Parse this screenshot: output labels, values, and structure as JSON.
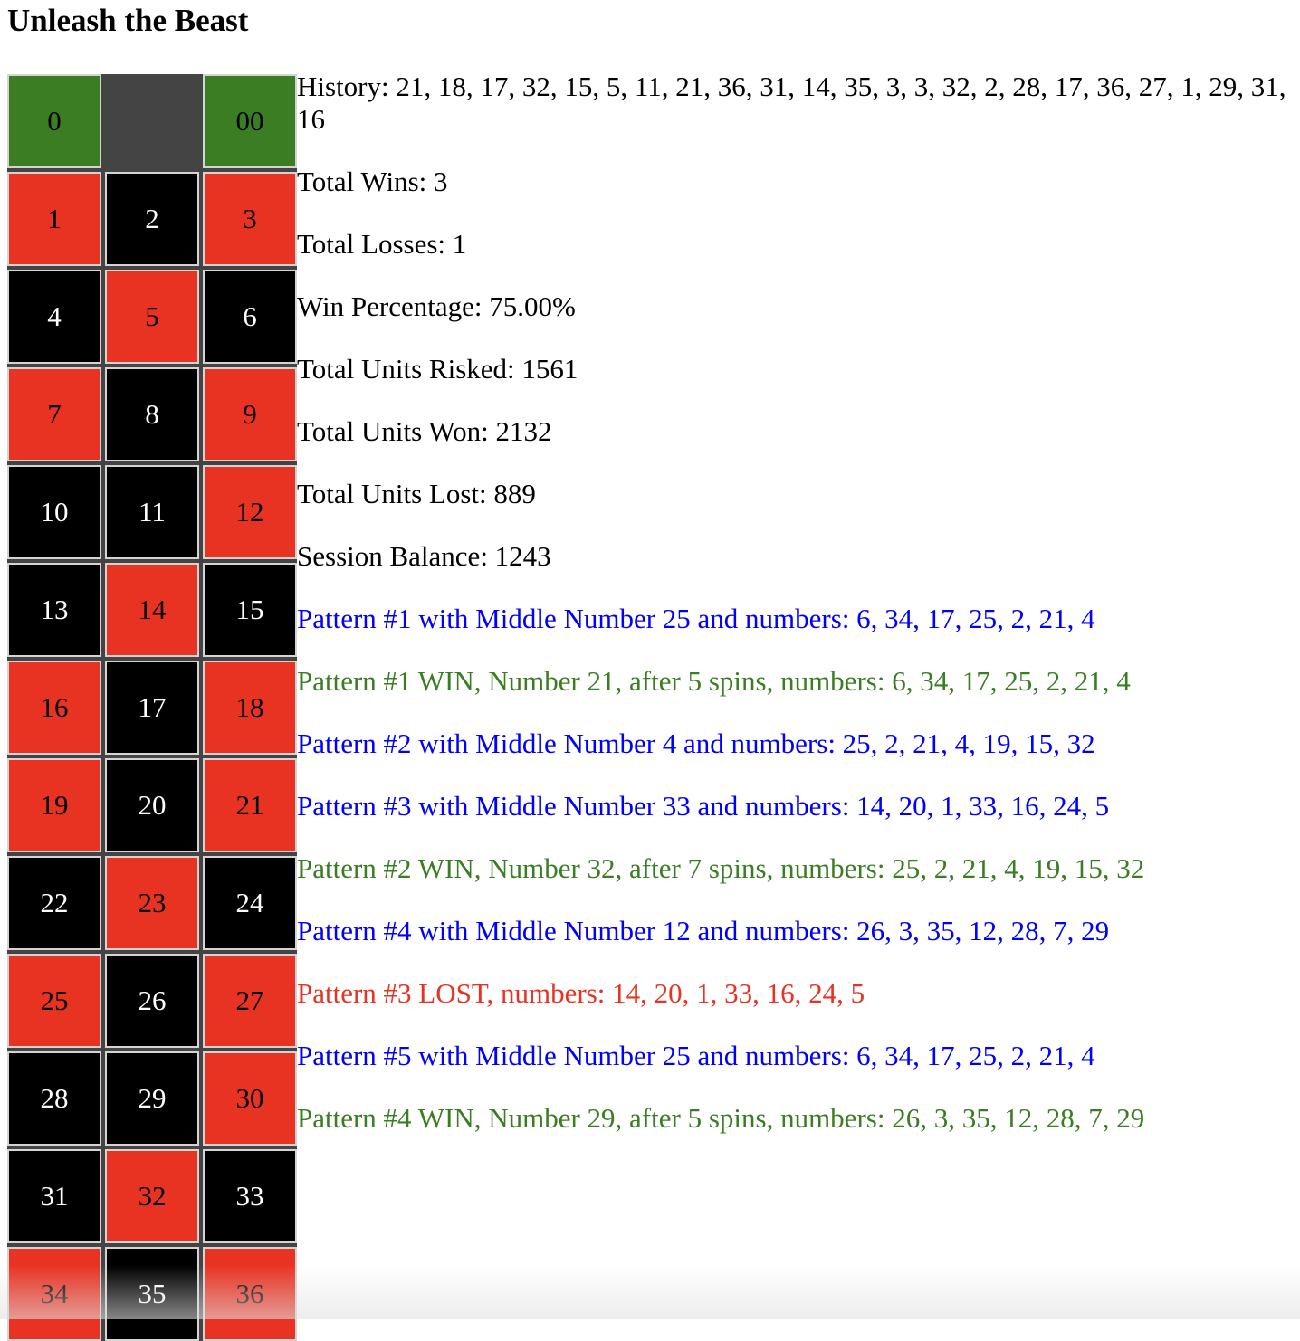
{
  "title": "Unleash the Beast",
  "colors": {
    "red": "#e83323",
    "black": "#000000",
    "green": "#3a7d23",
    "blue": "#0000ff"
  },
  "board": [
    [
      {
        "n": "0",
        "c": "green"
      },
      {
        "n": "",
        "c": "empty"
      },
      {
        "n": "00",
        "c": "green"
      }
    ],
    [
      {
        "n": "1",
        "c": "red"
      },
      {
        "n": "2",
        "c": "black"
      },
      {
        "n": "3",
        "c": "red"
      }
    ],
    [
      {
        "n": "4",
        "c": "black"
      },
      {
        "n": "5",
        "c": "red"
      },
      {
        "n": "6",
        "c": "black"
      }
    ],
    [
      {
        "n": "7",
        "c": "red"
      },
      {
        "n": "8",
        "c": "black"
      },
      {
        "n": "9",
        "c": "red"
      }
    ],
    [
      {
        "n": "10",
        "c": "black"
      },
      {
        "n": "11",
        "c": "black"
      },
      {
        "n": "12",
        "c": "red"
      }
    ],
    [
      {
        "n": "13",
        "c": "black"
      },
      {
        "n": "14",
        "c": "red"
      },
      {
        "n": "15",
        "c": "black"
      }
    ],
    [
      {
        "n": "16",
        "c": "red"
      },
      {
        "n": "17",
        "c": "black"
      },
      {
        "n": "18",
        "c": "red"
      }
    ],
    [
      {
        "n": "19",
        "c": "red"
      },
      {
        "n": "20",
        "c": "black"
      },
      {
        "n": "21",
        "c": "red"
      }
    ],
    [
      {
        "n": "22",
        "c": "black"
      },
      {
        "n": "23",
        "c": "red"
      },
      {
        "n": "24",
        "c": "black"
      }
    ],
    [
      {
        "n": "25",
        "c": "red"
      },
      {
        "n": "26",
        "c": "black"
      },
      {
        "n": "27",
        "c": "red"
      }
    ],
    [
      {
        "n": "28",
        "c": "black"
      },
      {
        "n": "29",
        "c": "black"
      },
      {
        "n": "30",
        "c": "red"
      }
    ],
    [
      {
        "n": "31",
        "c": "black"
      },
      {
        "n": "32",
        "c": "red"
      },
      {
        "n": "33",
        "c": "black"
      }
    ],
    [
      {
        "n": "34",
        "c": "red"
      },
      {
        "n": "35",
        "c": "black"
      },
      {
        "n": "36",
        "c": "red"
      }
    ]
  ],
  "stats": {
    "history": "History: 21, 18, 17, 32, 15, 5, 11, 21, 36, 31, 14, 35, 3, 3, 32, 2, 28, 17, 36, 27, 1, 29, 31, 16",
    "total_wins": "Total Wins: 3",
    "total_losses": "Total Losses: 1",
    "win_percentage": "Win Percentage: 75.00%",
    "units_risked": "Total Units Risked: 1561",
    "units_won": "Total Units Won: 2132",
    "units_lost": "Total Units Lost: 889",
    "session_balance": "Session Balance: 1243"
  },
  "log": [
    {
      "type": "pattern",
      "text": "Pattern #1 with Middle Number 25 and numbers: 6, 34, 17, 25, 2, 21, 4"
    },
    {
      "type": "win",
      "text": "Pattern #1 WIN, Number 21, after 5 spins, numbers: 6, 34, 17, 25, 2, 21, 4"
    },
    {
      "type": "pattern",
      "text": "Pattern #2 with Middle Number 4 and numbers: 25, 2, 21, 4, 19, 15, 32"
    },
    {
      "type": "pattern",
      "text": "Pattern #3 with Middle Number 33 and numbers: 14, 20, 1, 33, 16, 24, 5"
    },
    {
      "type": "win",
      "text": "Pattern #2 WIN, Number 32, after 7 spins, numbers: 25, 2, 21, 4, 19, 15, 32"
    },
    {
      "type": "pattern",
      "text": "Pattern #4 with Middle Number 12 and numbers: 26, 3, 35, 12, 28, 7, 29"
    },
    {
      "type": "lost",
      "text": "Pattern #3 LOST, numbers: 14, 20, 1, 33, 16, 24, 5"
    },
    {
      "type": "pattern",
      "text": "Pattern #5 with Middle Number 25 and numbers: 6, 34, 17, 25, 2, 21, 4"
    },
    {
      "type": "win",
      "text": "Pattern #4 WIN, Number 29, after 5 spins, numbers: 26, 3, 35, 12, 28, 7, 29"
    }
  ]
}
